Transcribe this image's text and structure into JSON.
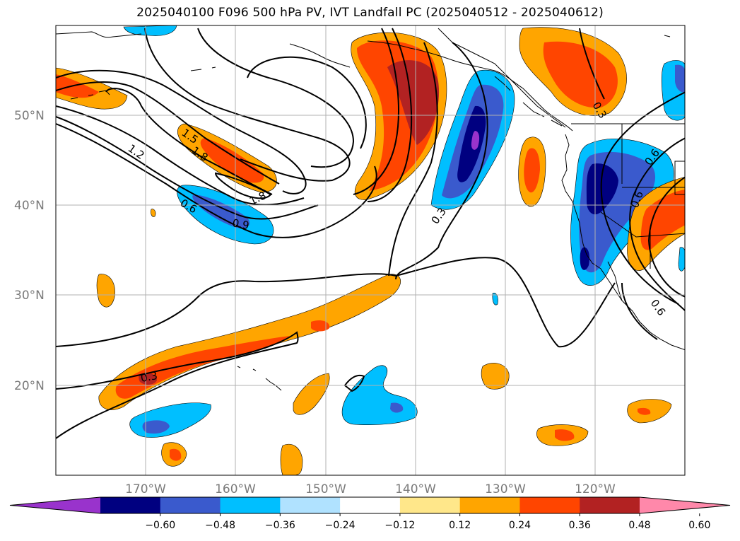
{
  "title": "2025040100 F096 500 hPa PV, IVT Landfall PC (2025040512 - 2025040612)",
  "lat_labels": [
    "20°N",
    "30°N",
    "40°N",
    "50°N"
  ],
  "lon_labels": [
    "170°W",
    "160°W",
    "150°W",
    "140°W",
    "130°W",
    "120°W"
  ],
  "contour_labels": [
    "1.5",
    "1.8",
    "1.2",
    "1.8",
    "0.6",
    "0.9",
    "0.3",
    "0.3",
    "0.3",
    "0.6",
    "0.6",
    "0.6"
  ],
  "colorbar": {
    "ticks": [
      "−0.60",
      "−0.48",
      "−0.36",
      "−0.24",
      "−0.12",
      "0.12",
      "0.24",
      "0.36",
      "0.48",
      "0.60"
    ],
    "colors": [
      "#9933cc",
      "#000080",
      "#3a5acd",
      "#00bfff",
      "#b0e2ff",
      "#ffffff",
      "#ffe78a",
      "#ffa500",
      "#ff4500",
      "#b22222",
      "#ff88aa"
    ]
  },
  "colors": {
    "blue_light": "#b0e2ff",
    "blue_mid": "#00bfff",
    "blue_royal": "#3a5acd",
    "navy": "#000080",
    "purple": "#9933cc",
    "yellow": "#ffe78a",
    "orange": "#ffa500",
    "red_orange": "#ff4500",
    "dark_red": "#b22222"
  }
}
